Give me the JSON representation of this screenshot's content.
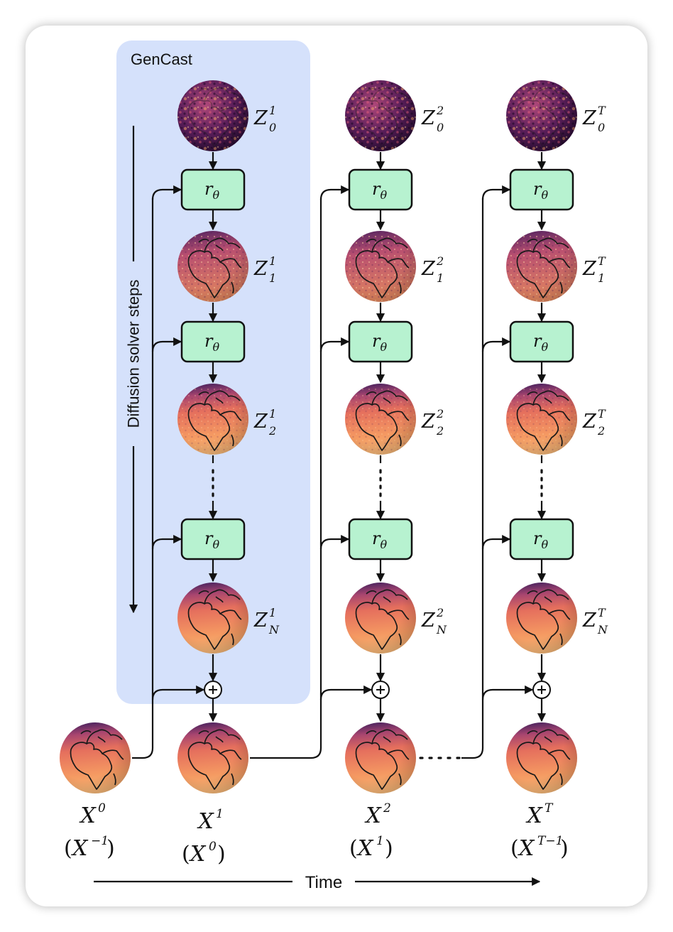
{
  "panel": {
    "title": "GenCast",
    "accent_color": "#d5e1fb"
  },
  "vertical_axis_label": "Diffusion solver steps",
  "time_axis_label": "Time",
  "function_label": {
    "base": "r",
    "subscript": "θ"
  },
  "columns": [
    {
      "id": "1",
      "latents": [
        {
          "base": "Z",
          "sup": "1",
          "sub": "0"
        },
        {
          "base": "Z",
          "sup": "1",
          "sub": "1"
        },
        {
          "base": "Z",
          "sup": "1",
          "sub": "2"
        },
        {
          "base": "Z",
          "sup": "1",
          "sub": "N"
        }
      ]
    },
    {
      "id": "2",
      "latents": [
        {
          "base": "Z",
          "sup": "2",
          "sub": "0"
        },
        {
          "base": "Z",
          "sup": "2",
          "sub": "1"
        },
        {
          "base": "Z",
          "sup": "2",
          "sub": "2"
        },
        {
          "base": "Z",
          "sup": "2",
          "sub": "N"
        }
      ]
    },
    {
      "id": "T",
      "latents": [
        {
          "base": "Z",
          "sup": "T",
          "sub": "0"
        },
        {
          "base": "Z",
          "sup": "T",
          "sub": "1"
        },
        {
          "base": "Z",
          "sup": "T",
          "sub": "2"
        },
        {
          "base": "Z",
          "sup": "T",
          "sub": "N"
        }
      ]
    }
  ],
  "states": [
    {
      "base": "X",
      "sup": "0",
      "cond_base": "X",
      "cond_sup": "−1"
    },
    {
      "base": "X",
      "sup": "1",
      "cond_base": "X",
      "cond_sup": "0"
    },
    {
      "base": "X",
      "sup": "2",
      "cond_base": "X",
      "cond_sup": "1"
    },
    {
      "base": "X",
      "sup": "T",
      "cond_base": "X",
      "cond_sup": "T−1"
    }
  ],
  "colors": {
    "network_box": "#b7f2d0",
    "globe_noise": "#4a1a45",
    "globe_warm": "#f58f5e",
    "globe_cool_top": "#3a1d5c"
  }
}
